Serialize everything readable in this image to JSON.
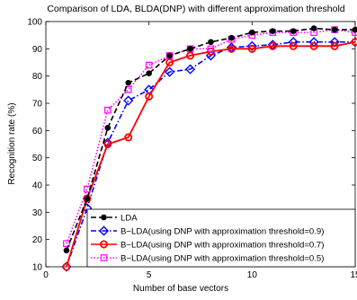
{
  "chart_data": {
    "type": "line",
    "title": "Comparison of LDA, BLDA(DNP) with different approximation threshold",
    "xlabel": "Number of base vectors",
    "ylabel": "Recognition rate (%)",
    "xlim": [
      0,
      15
    ],
    "ylim": [
      10,
      100
    ],
    "xticks": [
      0,
      5,
      10,
      15
    ],
    "yticks": [
      10,
      20,
      30,
      40,
      50,
      60,
      70,
      80,
      90,
      100
    ],
    "grid": false,
    "legend_position": "bottom-right",
    "x": [
      1,
      2,
      3,
      4,
      5,
      6,
      7,
      8,
      9,
      10,
      11,
      12,
      13,
      14,
      15
    ],
    "series": [
      {
        "name": "LDA",
        "color": "#000000",
        "line_style": "dashed",
        "marker": "dot",
        "values": [
          16,
          35,
          61,
          77.5,
          81,
          87.5,
          90,
          92.5,
          94,
          96,
          96.5,
          96.5,
          97.5,
          97,
          97
        ]
      },
      {
        "name": "B−LDA(using DNP with approximation threshold=0.9)",
        "color": "#0000ff",
        "line_style": "dashdot",
        "marker": "diamond",
        "values": [
          10,
          31.5,
          55.5,
          71,
          75,
          81.5,
          82.5,
          87.5,
          90.5,
          91,
          91.5,
          92.5,
          92.5,
          92.5,
          92.5
        ]
      },
      {
        "name": "B−LDA(using DNP with approximation threshold=0.7)",
        "color": "#ff0000",
        "line_style": "solid",
        "marker": "circle",
        "values": [
          10,
          35,
          55,
          57.5,
          72.5,
          85,
          87.5,
          89,
          90,
          90,
          91,
          91,
          91,
          91,
          92.5
        ]
      },
      {
        "name": "B−LDA(using DNP with approximation threshold=0.5)",
        "color": "#ff00ff",
        "line_style": "dotted",
        "marker": "square",
        "values": [
          18.5,
          38.5,
          67.5,
          75,
          84,
          87.5,
          90,
          90,
          93.5,
          95,
          96,
          96,
          96,
          97,
          96
        ]
      }
    ]
  }
}
